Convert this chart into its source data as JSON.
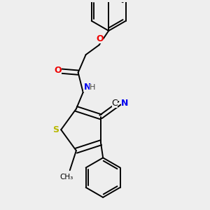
{
  "background_color": "#eeeeee",
  "bond_color": "#000000",
  "atom_colors": {
    "S": "#b8b800",
    "N": "#0000ee",
    "O": "#ee0000",
    "C": "#000000",
    "H": "#444444"
  }
}
